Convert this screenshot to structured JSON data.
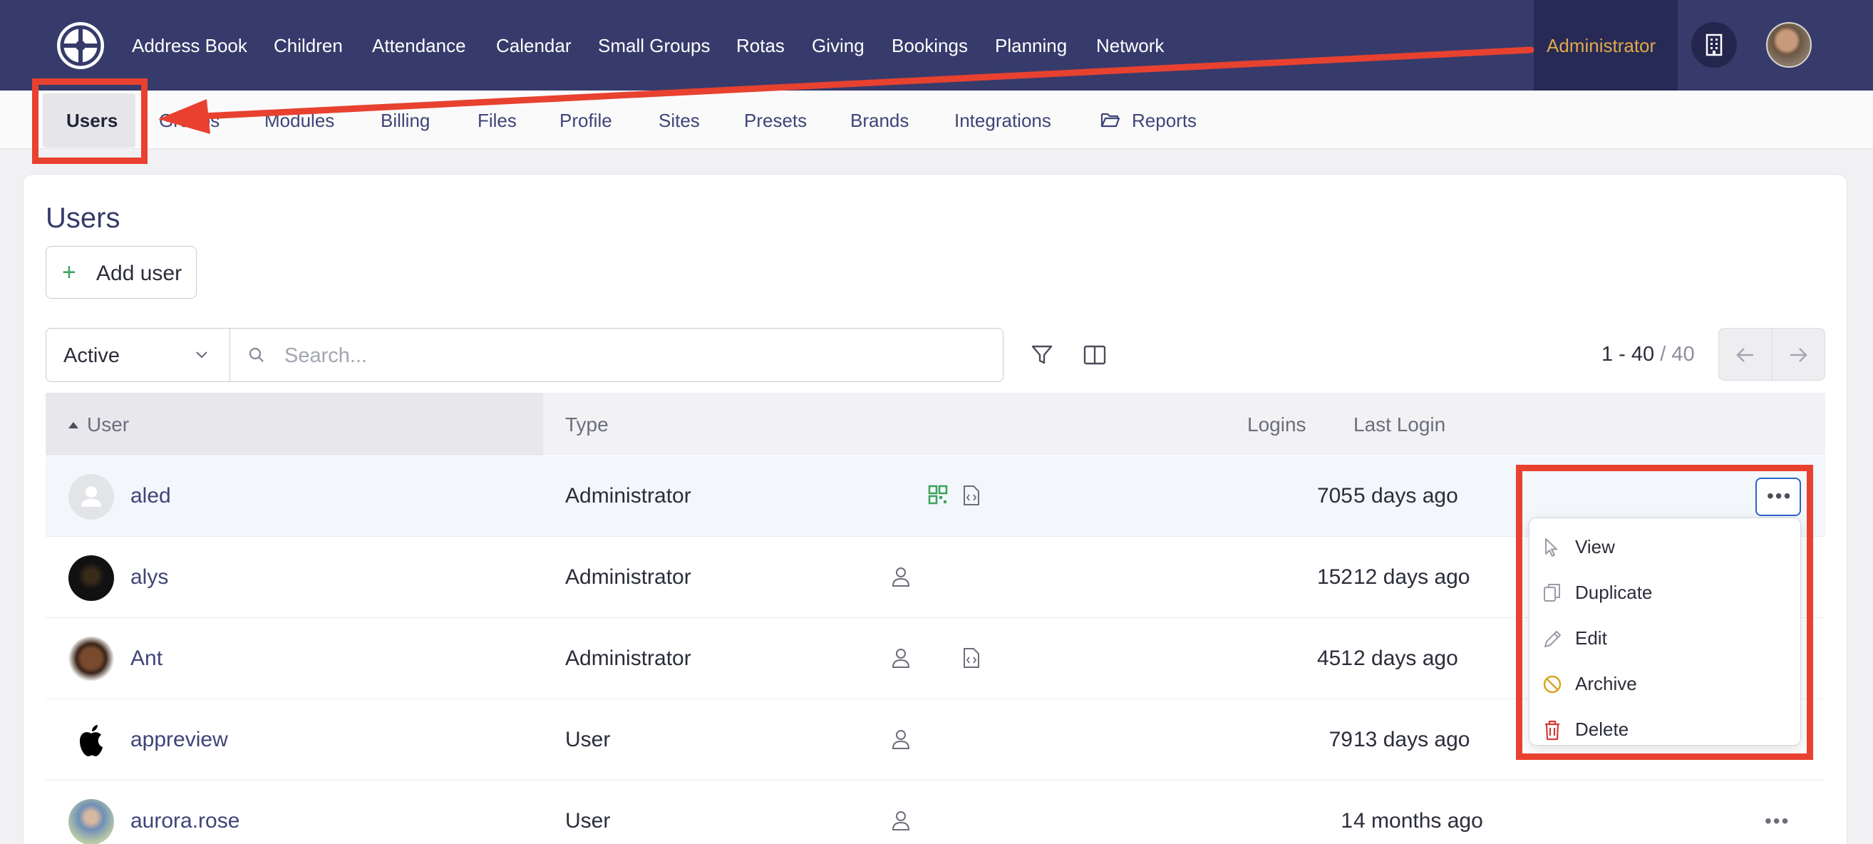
{
  "topnav": {
    "items": [
      "Address Book",
      "Children",
      "Attendance",
      "Calendar",
      "Small Groups",
      "Rotas",
      "Giving",
      "Bookings",
      "Planning",
      "Network"
    ],
    "role_label": "Administrator"
  },
  "subnav": {
    "active": "Users",
    "items": [
      "Groups",
      "Modules",
      "Billing",
      "Files",
      "Profile",
      "Sites",
      "Presets",
      "Brands",
      "Integrations",
      "Reports"
    ]
  },
  "page": {
    "title": "Users",
    "add_button": "Add user"
  },
  "filters": {
    "status_value": "Active",
    "search_placeholder": "Search...",
    "pager_range": "1 - 40",
    "pager_total": "/ 40"
  },
  "table": {
    "columns": {
      "user": "User",
      "type": "Type",
      "logins": "Logins",
      "last_login": "Last Login"
    },
    "rows": [
      {
        "name": "aled",
        "type": "Administrator",
        "logins": "705",
        "last_login": "5 days ago"
      },
      {
        "name": "alys",
        "type": "Administrator",
        "logins": "152",
        "last_login": "12 days ago"
      },
      {
        "name": "Ant",
        "type": "Administrator",
        "logins": "451",
        "last_login": "2 days ago"
      },
      {
        "name": "appreview",
        "type": "User",
        "logins": "79",
        "last_login": "13 days ago"
      },
      {
        "name": "aurora.rose",
        "type": "User",
        "logins": "1",
        "last_login": "4 months ago"
      }
    ]
  },
  "row_menu": {
    "items": [
      {
        "label": "View",
        "icon": "pointer-icon"
      },
      {
        "label": "Duplicate",
        "icon": "duplicate-icon"
      },
      {
        "label": "Edit",
        "icon": "pencil-icon"
      },
      {
        "label": "Archive",
        "icon": "archive-ban-icon",
        "color": "#d8a21c"
      },
      {
        "label": "Delete",
        "icon": "trash-icon",
        "color": "#d33a3a"
      }
    ]
  },
  "colors": {
    "nav_bg": "#363b6b",
    "accent_admin": "#e0a94a",
    "annotation_red": "#e8412f",
    "focus_blue": "#2d63c8"
  }
}
